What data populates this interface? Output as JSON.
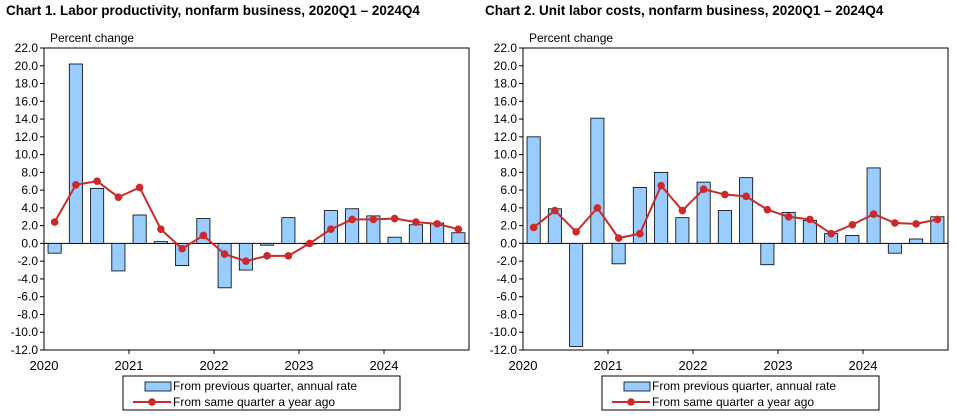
{
  "chart_data": [
    {
      "type": "bar+line",
      "title": "Chart  1. Labor productivity, nonfarm business, 2020Q1 – 2024Q4",
      "ylabel": "Percent change",
      "ylim": [
        -12,
        22
      ],
      "yticks": [
        "22.0",
        "20.0",
        "18.0",
        "16.0",
        "14.0",
        "12.0",
        "10.0",
        "8.0",
        "6.0",
        "4.0",
        "2.0",
        "0.0",
        "-2.0",
        "-4.0",
        "-6.0",
        "-8.0",
        "-10.0",
        "-12.0"
      ],
      "years": [
        "2020",
        "2021",
        "2022",
        "2023",
        "2024"
      ],
      "x": [
        "2020Q1",
        "2020Q2",
        "2020Q3",
        "2020Q4",
        "2021Q1",
        "2021Q2",
        "2021Q3",
        "2021Q4",
        "2022Q1",
        "2022Q2",
        "2022Q3",
        "2022Q4",
        "2023Q1",
        "2023Q2",
        "2023Q3",
        "2023Q4",
        "2024Q1",
        "2024Q2",
        "2024Q3",
        "2024Q4"
      ],
      "grid": false,
      "legend_position": "bottom",
      "series": [
        {
          "name": "From previous quarter, annual rate",
          "type": "bar",
          "color": "#99ccff",
          "values": [
            -1.1,
            20.2,
            6.2,
            -3.1,
            3.2,
            0.2,
            -2.5,
            2.8,
            -5.0,
            -3.0,
            -0.2,
            2.9,
            0.0,
            3.7,
            3.9,
            3.1,
            0.7,
            2.1,
            2.3,
            1.2
          ]
        },
        {
          "name": "From same quarter a year ago",
          "type": "line",
          "color": "#cc2a2a",
          "values": [
            2.4,
            6.6,
            7.0,
            5.2,
            6.3,
            1.6,
            -0.6,
            0.9,
            -1.2,
            -2.0,
            -1.4,
            -1.4,
            0.0,
            1.6,
            2.7,
            2.7,
            2.8,
            2.4,
            2.2,
            1.6
          ]
        }
      ]
    },
    {
      "type": "bar+line",
      "title": "Chart  2. Unit labor costs, nonfarm business, 2020Q1 – 2024Q4",
      "ylabel": "Percent change",
      "ylim": [
        -12,
        22
      ],
      "yticks": [
        "22.0",
        "20.0",
        "18.0",
        "16.0",
        "14.0",
        "12.0",
        "10.0",
        "8.0",
        "6.0",
        "4.0",
        "2.0",
        "0.0",
        "-2.0",
        "-4.0",
        "-6.0",
        "-8.0",
        "-10.0",
        "-12.0"
      ],
      "years": [
        "2020",
        "2021",
        "2022",
        "2023",
        "2024"
      ],
      "x": [
        "2020Q1",
        "2020Q2",
        "2020Q3",
        "2020Q4",
        "2021Q1",
        "2021Q2",
        "2021Q3",
        "2021Q4",
        "2022Q1",
        "2022Q2",
        "2022Q3",
        "2022Q4",
        "2023Q1",
        "2023Q2",
        "2023Q3",
        "2023Q4",
        "2024Q1",
        "2024Q2",
        "2024Q3",
        "2024Q4"
      ],
      "grid": false,
      "legend_position": "bottom",
      "series": [
        {
          "name": "From previous quarter, annual rate",
          "type": "bar",
          "color": "#99ccff",
          "values": [
            12.0,
            3.9,
            -11.6,
            14.1,
            -2.3,
            6.3,
            8.0,
            2.9,
            6.9,
            3.7,
            7.4,
            -2.4,
            3.5,
            2.6,
            1.1,
            0.9,
            8.5,
            -1.1,
            0.5,
            3.0
          ]
        },
        {
          "name": "From same quarter a year ago",
          "type": "line",
          "color": "#cc2a2a",
          "values": [
            1.8,
            3.7,
            1.3,
            4.0,
            0.6,
            1.1,
            6.5,
            3.7,
            6.1,
            5.5,
            5.3,
            3.8,
            3.0,
            2.7,
            1.1,
            2.1,
            3.3,
            2.3,
            2.2,
            2.7
          ]
        }
      ]
    }
  ]
}
